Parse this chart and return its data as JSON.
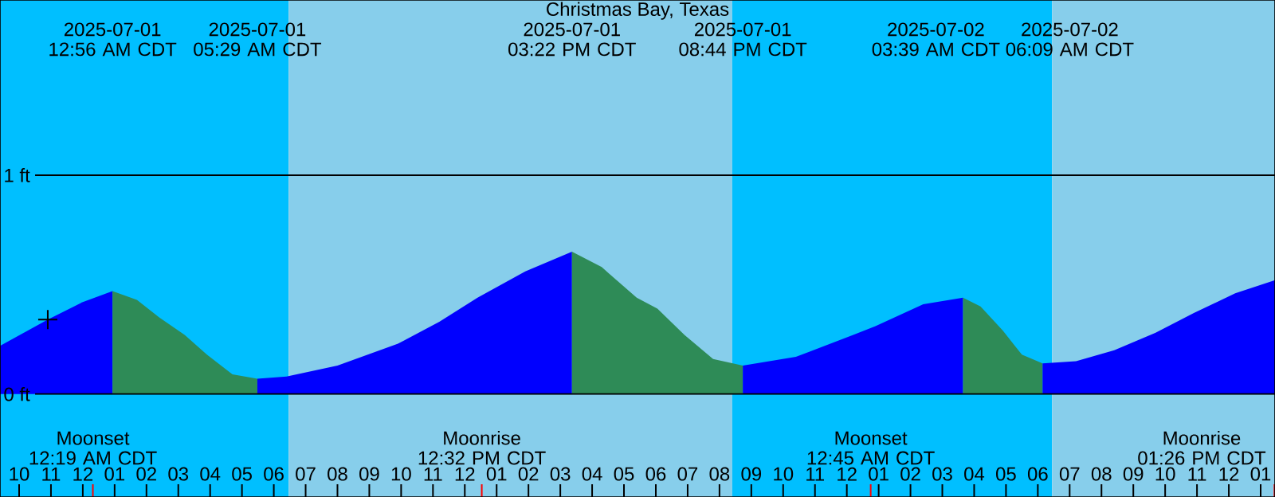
{
  "chart_data": {
    "type": "area",
    "title": "Christmas Bay, Texas",
    "xlim": [
      "2025-06-30T21:24",
      "2025-07-02T13:27"
    ],
    "ylim": [
      -0.47,
      1.8
    ],
    "xticks": [
      {
        "value": "2025-06-30T22:00",
        "label": "10"
      },
      {
        "value": "2025-06-30T23:00",
        "label": "11"
      },
      {
        "value": "2025-07-01T00:00",
        "label": "12"
      },
      {
        "value": "2025-07-01T01:00",
        "label": "01"
      },
      {
        "value": "2025-07-01T02:00",
        "label": "02"
      },
      {
        "value": "2025-07-01T03:00",
        "label": "03"
      },
      {
        "value": "2025-07-01T04:00",
        "label": "04"
      },
      {
        "value": "2025-07-01T05:00",
        "label": "05"
      },
      {
        "value": "2025-07-01T06:00",
        "label": "06"
      },
      {
        "value": "2025-07-01T07:00",
        "label": "07"
      },
      {
        "value": "2025-07-01T08:00",
        "label": "08"
      },
      {
        "value": "2025-07-01T09:00",
        "label": "09"
      },
      {
        "value": "2025-07-01T10:00",
        "label": "10"
      },
      {
        "value": "2025-07-01T11:00",
        "label": "11"
      },
      {
        "value": "2025-07-01T12:00",
        "label": "12"
      },
      {
        "value": "2025-07-01T13:00",
        "label": "01"
      },
      {
        "value": "2025-07-01T14:00",
        "label": "02"
      },
      {
        "value": "2025-07-01T15:00",
        "label": "03"
      },
      {
        "value": "2025-07-01T16:00",
        "label": "04"
      },
      {
        "value": "2025-07-01T17:00",
        "label": "05"
      },
      {
        "value": "2025-07-01T18:00",
        "label": "06"
      },
      {
        "value": "2025-07-01T19:00",
        "label": "07"
      },
      {
        "value": "2025-07-01T20:00",
        "label": "08"
      },
      {
        "value": "2025-07-01T21:00",
        "label": "09"
      },
      {
        "value": "2025-07-01T22:00",
        "label": "10"
      },
      {
        "value": "2025-07-01T23:00",
        "label": "11"
      },
      {
        "value": "2025-07-02T00:00",
        "label": "12"
      },
      {
        "value": "2025-07-02T01:00",
        "label": "01"
      },
      {
        "value": "2025-07-02T02:00",
        "label": "02"
      },
      {
        "value": "2025-07-02T03:00",
        "label": "03"
      },
      {
        "value": "2025-07-02T04:00",
        "label": "04"
      },
      {
        "value": "2025-07-02T05:00",
        "label": "05"
      },
      {
        "value": "2025-07-02T06:00",
        "label": "06"
      },
      {
        "value": "2025-07-02T07:00",
        "label": "07"
      },
      {
        "value": "2025-07-02T08:00",
        "label": "08"
      },
      {
        "value": "2025-07-02T09:00",
        "label": "09"
      },
      {
        "value": "2025-07-02T10:00",
        "label": "10"
      },
      {
        "value": "2025-07-02T11:00",
        "label": "11"
      },
      {
        "value": "2025-07-02T12:00",
        "label": "12"
      },
      {
        "value": "2025-07-02T13:00",
        "label": "01"
      }
    ],
    "yticks": [
      {
        "value": 0,
        "label": "0 ft"
      },
      {
        "value": 1,
        "label": "1 ft"
      }
    ],
    "grid": "y",
    "bands": [
      {
        "axis": "x",
        "from": "2025-06-30T21:24",
        "to": "2025-07-01T06:28",
        "color": "#00bfff"
      },
      {
        "axis": "x",
        "from": "2025-07-01T06:28",
        "to": "2025-07-01T20:24",
        "color": "#87ceeb"
      },
      {
        "axis": "x",
        "from": "2025-07-01T20:24",
        "to": "2025-07-02T06:27",
        "color": "#00bfff"
      },
      {
        "axis": "x",
        "from": "2025-07-02T06:27",
        "to": "2025-07-02T13:27",
        "color": "#87ceeb"
      }
    ],
    "series": [
      {
        "color": "#0000ff",
        "x": [
          "2025-06-30T21:24",
          "2025-06-30T22:54",
          "2025-07-01T00:00",
          "2025-07-01T00:56"
        ],
        "values": [
          0.22,
          0.34,
          0.42,
          0.47
        ]
      },
      {
        "color": "#2e8b57",
        "x": [
          "2025-07-01T00:56",
          "2025-07-01T01:42",
          "2025-07-01T02:24",
          "2025-07-01T03:12",
          "2025-07-01T03:54",
          "2025-07-01T04:42",
          "2025-07-01T05:29"
        ],
        "values": [
          0.47,
          0.43,
          0.35,
          0.27,
          0.18,
          0.09,
          0.07
        ]
      },
      {
        "color": "#0000ff",
        "x": [
          "2025-07-01T05:29",
          "2025-07-01T06:24",
          "2025-07-01T08:00",
          "2025-07-01T09:54",
          "2025-07-01T11:12",
          "2025-07-01T12:24",
          "2025-07-01T13:54",
          "2025-07-01T15:22"
        ],
        "values": [
          0.07,
          0.08,
          0.13,
          0.23,
          0.33,
          0.44,
          0.56,
          0.65
        ]
      },
      {
        "color": "#2e8b57",
        "x": [
          "2025-07-01T15:22",
          "2025-07-01T16:18",
          "2025-07-01T17:24",
          "2025-07-01T18:03",
          "2025-07-01T18:54",
          "2025-07-01T19:48",
          "2025-07-01T20:44"
        ],
        "values": [
          0.65,
          0.58,
          0.44,
          0.39,
          0.27,
          0.16,
          0.13
        ]
      },
      {
        "color": "#0000ff",
        "x": [
          "2025-07-01T20:44",
          "2025-07-01T22:24",
          "2025-07-02T00:12",
          "2025-07-02T00:54",
          "2025-07-02T02:24",
          "2025-07-02T03:39"
        ],
        "values": [
          0.13,
          0.17,
          0.27,
          0.31,
          0.41,
          0.44
        ]
      },
      {
        "color": "#2e8b57",
        "x": [
          "2025-07-02T03:39",
          "2025-07-02T04:12",
          "2025-07-02T04:54",
          "2025-07-02T05:30",
          "2025-07-02T06:09"
        ],
        "values": [
          0.44,
          0.4,
          0.29,
          0.18,
          0.14
        ]
      },
      {
        "color": "#0000ff",
        "x": [
          "2025-07-02T06:09",
          "2025-07-02T07:12",
          "2025-07-02T08:24",
          "2025-07-02T09:42",
          "2025-07-02T10:54",
          "2025-07-02T12:12",
          "2025-07-02T13:27"
        ],
        "values": [
          0.14,
          0.15,
          0.2,
          0.28,
          0.37,
          0.46,
          0.52
        ]
      },
      {
        "type": "scatter",
        "color": "#000000",
        "marker": "cross",
        "x": [
          "2025-06-30T22:54"
        ],
        "values": [
          0.34
        ]
      }
    ],
    "ref_lines": [
      {
        "axis": "x",
        "value": "2025-07-01T00:19",
        "label": "Moonset 12:19 AM CDT",
        "color": "#ff0000"
      },
      {
        "axis": "x",
        "value": "2025-07-01T12:32",
        "label": "Moonrise 12:32 PM CDT",
        "color": "#ff0000"
      },
      {
        "axis": "x",
        "value": "2025-07-02T00:45",
        "label": "Moonset 12:45 AM CDT",
        "color": "#ff0000"
      },
      {
        "axis": "x",
        "value": "2025-07-02T13:26",
        "label": "Moonrise 01:26 PM CDT",
        "color": "#ff0000"
      }
    ],
    "annotations": [
      "2025-07-01 12:56 AM CDT",
      "2025-07-01 05:29 AM CDT",
      "2025-07-01 03:22 PM CDT",
      "2025-07-01 08:44 PM CDT",
      "2025-07-02 03:39 AM CDT",
      "2025-07-02 06:09 AM CDT"
    ]
  }
}
